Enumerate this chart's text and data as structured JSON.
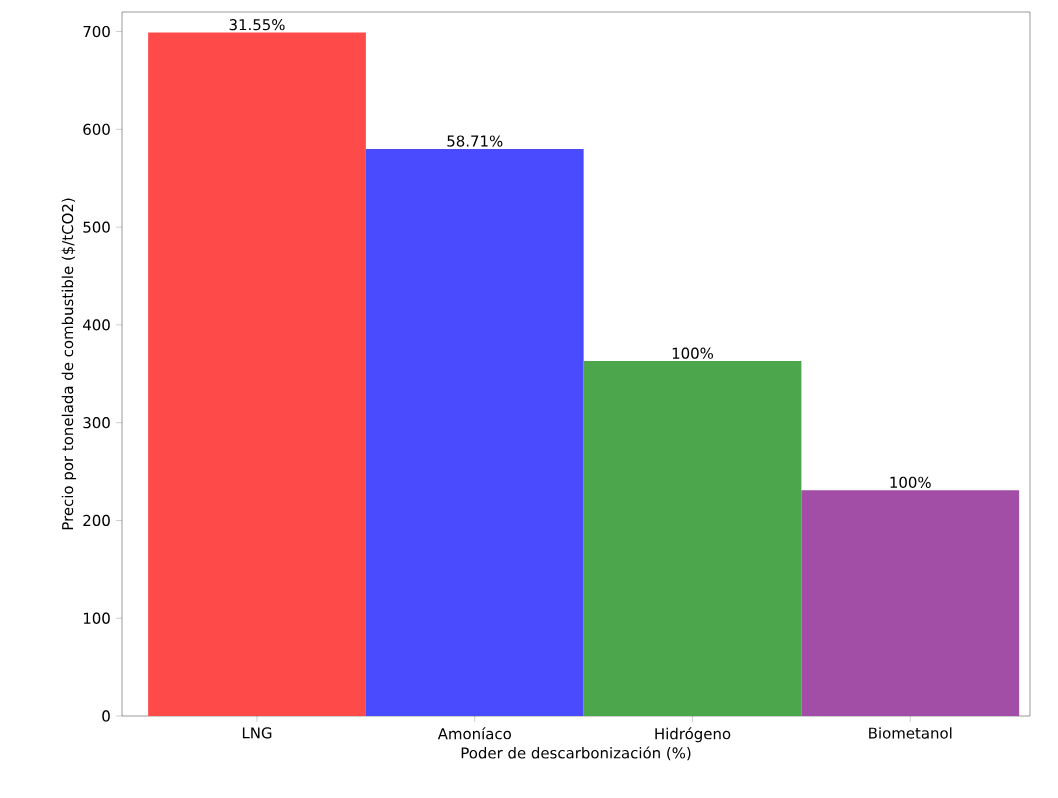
{
  "chart_data": {
    "type": "bar",
    "xlabel": "Poder de descarbonización (%)",
    "ylabel": "Precio por tonelada de combustible ($/tCO2)",
    "categories": [
      "LNG",
      "Amoníaco",
      "Hidrógeno",
      "Biometanol"
    ],
    "values": [
      699,
      580,
      363,
      231
    ],
    "colors": [
      "#ff4a4a",
      "#4a4aff",
      "#4ca64c",
      "#a24ea6"
    ],
    "annotations": [
      {
        "text": "31.55%",
        "x": "LNG",
        "y": 699
      },
      {
        "text": "58.71%",
        "x": "Amoníaco",
        "y": 580
      },
      {
        "text": "100%",
        "x": "Hidrógeno",
        "y": 363
      },
      {
        "text": "100%",
        "x": "Biometanol",
        "y": 231
      }
    ],
    "ylim": [
      0,
      720
    ],
    "yticks": [
      0,
      100,
      200,
      300,
      400,
      500,
      600,
      700
    ],
    "grid": false
  }
}
